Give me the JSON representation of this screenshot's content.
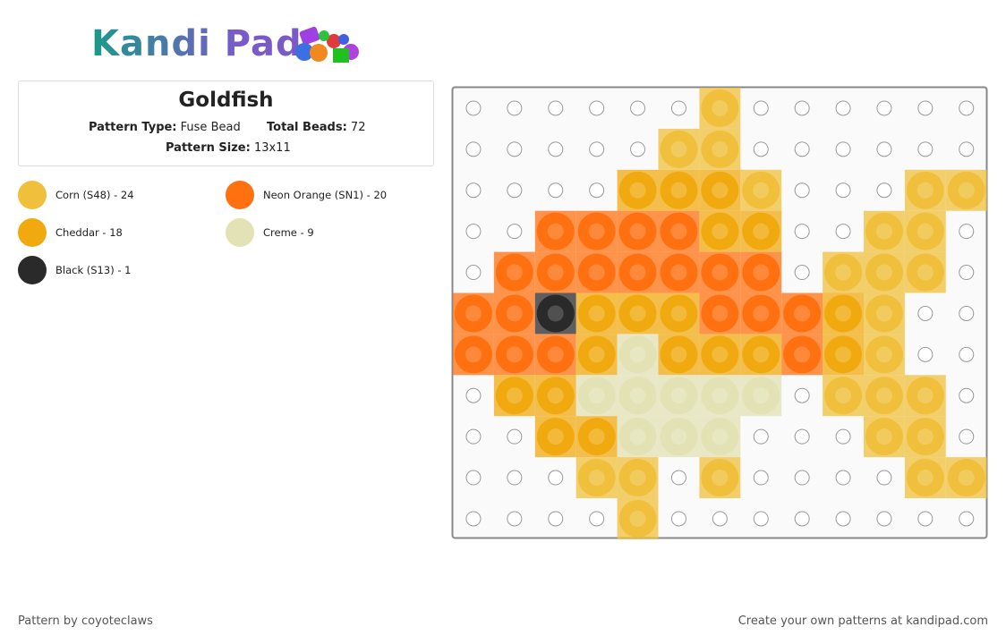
{
  "logo": "Kandi Pad",
  "header": {
    "title": "Goldfish",
    "type_label": "Pattern Type:",
    "type_value": "Fuse Bead",
    "total_label": "Total Beads:",
    "total_value": "72",
    "size_label": "Pattern Size:",
    "size_value": "13x11"
  },
  "legend": [
    {
      "label": "Corn (S48) - 24",
      "color": "#f0c03c"
    },
    {
      "label": "Neon Orange (SN1) - 20",
      "color": "#ff7010"
    },
    {
      "label": "Cheddar - 18",
      "color": "#f0aa10"
    },
    {
      "label": "Creme - 9",
      "color": "#e2e2b4"
    },
    {
      "label": "Black (S13) - 1",
      "color": "#2a2a2a"
    }
  ],
  "grid": [
    [
      null,
      null,
      null,
      null,
      null,
      null,
      0,
      null,
      null,
      null,
      null,
      null,
      null
    ],
    [
      null,
      null,
      null,
      null,
      null,
      0,
      0,
      null,
      null,
      null,
      null,
      null,
      null
    ],
    [
      null,
      null,
      null,
      null,
      2,
      2,
      2,
      0,
      null,
      null,
      null,
      0,
      0
    ],
    [
      null,
      null,
      1,
      1,
      1,
      1,
      2,
      2,
      null,
      null,
      0,
      0,
      null
    ],
    [
      null,
      1,
      1,
      1,
      1,
      1,
      1,
      1,
      null,
      0,
      0,
      0,
      null
    ],
    [
      1,
      1,
      4,
      2,
      2,
      2,
      1,
      1,
      1,
      2,
      0,
      null,
      null
    ],
    [
      1,
      1,
      1,
      2,
      3,
      2,
      2,
      2,
      1,
      2,
      0,
      null,
      null
    ],
    [
      null,
      2,
      2,
      3,
      3,
      3,
      3,
      3,
      null,
      0,
      0,
      0,
      null
    ],
    [
      null,
      null,
      2,
      2,
      3,
      3,
      3,
      null,
      null,
      null,
      0,
      0,
      null
    ],
    [
      null,
      null,
      null,
      0,
      0,
      null,
      0,
      null,
      null,
      null,
      null,
      0,
      0
    ],
    [
      null,
      null,
      null,
      null,
      0,
      null,
      null,
      null,
      null,
      null,
      null,
      null,
      null
    ]
  ],
  "footer": {
    "left": "Pattern by coyoteclaws",
    "right": "Create your own patterns at kandipad.com"
  }
}
